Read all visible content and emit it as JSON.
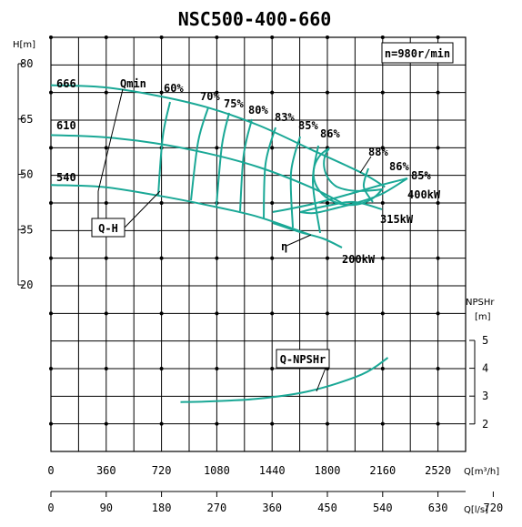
{
  "chart_data": {
    "type": "line",
    "title": "NSC500-400-660",
    "speed_note": "n=980r/min",
    "x_axis_primary": {
      "label": "Q[m³/h]",
      "ticks": [
        "0",
        "360",
        "720",
        "1080",
        "1440",
        "1800",
        "2160",
        "2520"
      ],
      "range": [
        0,
        2880
      ]
    },
    "x_axis_secondary": {
      "label": "Q[l/s]",
      "ticks": [
        "0",
        "90",
        "180",
        "270",
        "360",
        "450",
        "540",
        "630",
        "720"
      ]
    },
    "y_axis_head": {
      "label": "H[m]",
      "ticks": [
        "80",
        "65",
        "50",
        "35",
        "20"
      ],
      "range": [
        20,
        80
      ]
    },
    "y_axis_npsh": {
      "label": "NPSHr",
      "unit": "[m]",
      "ticks": [
        "5",
        "4",
        "3",
        "2"
      ],
      "range": [
        2,
        5
      ]
    },
    "impeller_diameters": [
      "666",
      "610",
      "540"
    ],
    "efficiency_labels": [
      "60%",
      "70%",
      "75%",
      "80%",
      "83%",
      "85%",
      "86%",
      "88%",
      "86%",
      "85%"
    ],
    "power_labels": [
      "400kW",
      "315kW",
      "200kW"
    ],
    "annotations": {
      "qmin": "Qmin",
      "qh": "Q-H",
      "eta": "η",
      "qnpshr": "Q-NPSHr"
    },
    "series": [
      {
        "name": "666",
        "x": [
          0,
          360,
          720,
          1080,
          1440,
          1800,
          2160,
          2320
        ],
        "y": [
          73,
          72.5,
          70.5,
          67.5,
          63,
          57,
          51,
          47.5
        ]
      },
      {
        "name": "610",
        "x": [
          0,
          360,
          720,
          1080,
          1440,
          1800,
          2020
        ],
        "y": [
          60.5,
          60,
          58.5,
          56,
          52.5,
          47.5,
          43.5
        ]
      },
      {
        "name": "540",
        "x": [
          0,
          360,
          720,
          1080,
          1440,
          1800
        ],
        "y": [
          48,
          47.5,
          45.5,
          43,
          40,
          35.5
        ]
      },
      {
        "name": "Q-NPSHr",
        "x": [
          900,
          1080,
          1440,
          1800,
          2160,
          2340
        ],
        "y": [
          2.8,
          2.82,
          2.92,
          3.2,
          3.8,
          4.4
        ]
      }
    ],
    "grid": true
  }
}
